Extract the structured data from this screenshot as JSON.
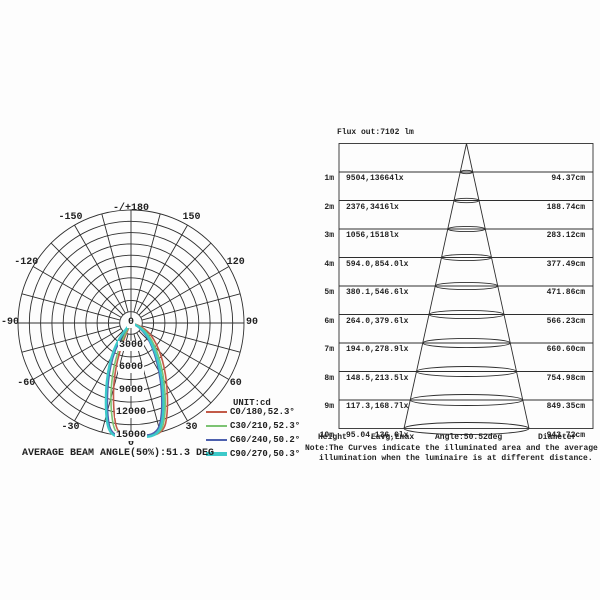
{
  "left_chart": {
    "angle_labels": [
      {
        "text": "-/+180",
        "deg": 180
      },
      {
        "text": "150",
        "deg": 150
      },
      {
        "text": "120",
        "deg": 120
      },
      {
        "text": "90",
        "deg": 90
      },
      {
        "text": "60",
        "deg": 60
      },
      {
        "text": "30",
        "deg": 30
      },
      {
        "text": "0",
        "deg": 0
      },
      {
        "text": "-30",
        "deg": -30
      },
      {
        "text": "-60",
        "deg": -60
      },
      {
        "text": "-90",
        "deg": -90
      },
      {
        "text": "-120",
        "deg": -120
      },
      {
        "text": "-150",
        "deg": -150
      }
    ],
    "ring_labels": [
      {
        "text": "0",
        "cd": 0
      },
      {
        "text": "3000",
        "cd": 3000
      },
      {
        "text": "6000",
        "cd": 6000
      },
      {
        "text": "9000",
        "cd": 9000
      },
      {
        "text": "12000",
        "cd": 12000
      },
      {
        "text": "15000",
        "cd": 15000
      }
    ],
    "legend": {
      "title": "UNIT:cd",
      "items": [
        {
          "label": "C0/180,52.3°",
          "color": "#c25a48"
        },
        {
          "label": "C30/210,52.3°",
          "color": "#7cc373",
          "color_note": "light-green"
        },
        {
          "label": "C60/240,50.2°",
          "color": "#4d60ae"
        },
        {
          "label": "C90/270,50.3°",
          "color": "#3cc9c9"
        }
      ]
    },
    "caption": "AVERAGE BEAM ANGLE(50%):51.3 DEG"
  },
  "right_chart": {
    "flux_label": "Flux out:7102 lm",
    "rows": [
      {
        "height": "1m",
        "eavg_emax": "9504,13664lx",
        "diameter": "94.37cm"
      },
      {
        "height": "2m",
        "eavg_emax": "2376,3416lx",
        "diameter": "188.74cm"
      },
      {
        "height": "3m",
        "eavg_emax": "1056,1518lx",
        "diameter": "283.12cm"
      },
      {
        "height": "4m",
        "eavg_emax": "594.0,854.0lx",
        "diameter": "377.49cm"
      },
      {
        "height": "5m",
        "eavg_emax": "380.1,546.6lx",
        "diameter": "471.86cm"
      },
      {
        "height": "6m",
        "eavg_emax": "264.0,379.6lx",
        "diameter": "566.23cm"
      },
      {
        "height": "7m",
        "eavg_emax": "194.0,278.9lx",
        "diameter": "660.60cm"
      },
      {
        "height": "8m",
        "eavg_emax": "148.5,213.5lx",
        "diameter": "754.98cm"
      },
      {
        "height": "9m",
        "eavg_emax": "117.3,168.7lx",
        "diameter": "849.35cm"
      },
      {
        "height": "10m",
        "eavg_emax": "95.04,136.6lx",
        "diameter": "943.72cm"
      }
    ],
    "footer": {
      "height": "Height",
      "eavg_emax": "Eavg,Emax",
      "angle": "Angle:50.52deg",
      "diameter": "Diameter"
    },
    "note_line1": "Note:The Curves indicate the illuminated area and the average",
    "note_line2": "illumination when the luminaire is at different distance."
  },
  "chart_data": [
    {
      "type": "line",
      "subtype": "polar-candela-distribution",
      "unit": "cd",
      "radial_ticks_cd": [
        0,
        3000,
        6000,
        9000,
        12000,
        15000
      ],
      "radial_max_cd": 15000,
      "angle_ticks_deg": [
        -150,
        -120,
        -90,
        -60,
        -30,
        0,
        30,
        60,
        90,
        120,
        150,
        180
      ],
      "grid": "on",
      "legend_position": "bottom-right",
      "series": [
        {
          "name": "C0/180",
          "beam_angle_deg": 52.3,
          "peak_cd": 15300,
          "half_max_cd": 7650
        },
        {
          "name": "C30/210",
          "beam_angle_deg": 52.3,
          "peak_cd": 15200,
          "half_max_cd": 7600
        },
        {
          "name": "C60/240",
          "beam_angle_deg": 50.2,
          "peak_cd": 15100,
          "half_max_cd": 7550
        },
        {
          "name": "C90/270",
          "beam_angle_deg": 50.3,
          "peak_cd": 15100,
          "half_max_cd": 7550
        }
      ],
      "annotation": "AVERAGE BEAM ANGLE(50%):51.3 DEG"
    },
    {
      "type": "table",
      "subtype": "illuminance-cone-diagram",
      "title": "Flux out:7102 lm",
      "flux_out_lm": 7102,
      "beam_angle": "50.52deg",
      "columns": [
        "Height",
        "Eavg,Emax",
        "Diameter"
      ],
      "rows": [
        [
          "1m",
          "9504,13664lx",
          "94.37cm"
        ],
        [
          "2m",
          "2376,3416lx",
          "188.74cm"
        ],
        [
          "3m",
          "1056,1518lx",
          "283.12cm"
        ],
        [
          "4m",
          "594.0,854.0lx",
          "377.49cm"
        ],
        [
          "5m",
          "380.1,546.6lx",
          "471.86cm"
        ],
        [
          "6m",
          "264.0,379.6lx",
          "566.23cm"
        ],
        [
          "7m",
          "194.0,278.9lx",
          "660.60cm"
        ],
        [
          "8m",
          "148.5,213.5lx",
          "754.98cm"
        ],
        [
          "9m",
          "117.3,168.7lx",
          "849.35cm"
        ],
        [
          "10m",
          "95.04,136.6lx",
          "943.72cm"
        ]
      ]
    }
  ]
}
